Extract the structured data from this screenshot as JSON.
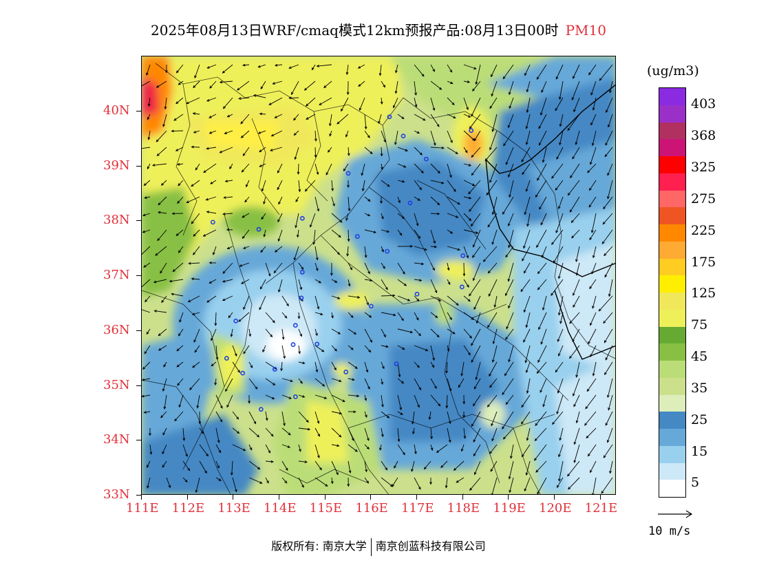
{
  "title": "2025年08月13日WRF/cmaq模式12km预报产品:08月13日00时",
  "product": "PM10",
  "lat_labels": [
    "40N",
    "39N",
    "38N",
    "37N",
    "36N",
    "35N",
    "34N",
    "33N"
  ],
  "lon_labels": [
    "111E",
    "112E",
    "113E",
    "114E",
    "115E",
    "116E",
    "117E",
    "118E",
    "119E",
    "120E",
    "121E"
  ],
  "legend": {
    "unit": "(ug/m3)",
    "labels": [
      "403",
      "368",
      "325",
      "275",
      "225",
      "175",
      "125",
      "75",
      "45",
      "35",
      "25",
      "15",
      "5"
    ],
    "colors": [
      "#8a2be2",
      "#9b30c8",
      "#b03060",
      "#cc1477",
      "#ff0000",
      "#ff2050",
      "#ff6666",
      "#ee5522",
      "#ff8800",
      "#ffaa33",
      "#ffcc22",
      "#ffee00",
      "#f0e85a",
      "#eef05a",
      "#66aa33",
      "#88c044",
      "#bbdd77",
      "#cce08c",
      "#ddeebb",
      "#4488c4",
      "#66a8d8",
      "#99d0ee",
      "#cde8f6",
      "#ffffff"
    ]
  },
  "vector_ref": "10 m/s",
  "credits": {
    "left": "版权所有: 南京大学",
    "right": "南京创蓝科技有限公司"
  },
  "stations": [
    {
      "lon": 116.4,
      "lat": 39.9
    },
    {
      "lon": 116.7,
      "lat": 39.55
    },
    {
      "lon": 117.2,
      "lat": 39.13
    },
    {
      "lon": 118.18,
      "lat": 39.65
    },
    {
      "lon": 115.5,
      "lat": 38.87
    },
    {
      "lon": 116.85,
      "lat": 38.33
    },
    {
      "lon": 114.5,
      "lat": 38.05
    },
    {
      "lon": 112.55,
      "lat": 37.98
    },
    {
      "lon": 113.55,
      "lat": 37.85
    },
    {
      "lon": 115.7,
      "lat": 37.72
    },
    {
      "lon": 116.35,
      "lat": 37.45
    },
    {
      "lon": 118.0,
      "lat": 37.37
    },
    {
      "lon": 114.5,
      "lat": 37.07
    },
    {
      "lon": 114.48,
      "lat": 36.6
    },
    {
      "lon": 117.0,
      "lat": 36.67
    },
    {
      "lon": 117.98,
      "lat": 36.8
    },
    {
      "lon": 116.0,
      "lat": 36.45
    },
    {
      "lon": 114.35,
      "lat": 36.1
    },
    {
      "lon": 113.05,
      "lat": 36.18
    },
    {
      "lon": 114.3,
      "lat": 35.75
    },
    {
      "lon": 114.82,
      "lat": 35.76
    },
    {
      "lon": 115.45,
      "lat": 35.25
    },
    {
      "lon": 116.55,
      "lat": 35.4
    },
    {
      "lon": 112.85,
      "lat": 35.5
    },
    {
      "lon": 113.2,
      "lat": 35.23
    },
    {
      "lon": 113.9,
      "lat": 35.3
    },
    {
      "lon": 113.6,
      "lat": 34.57
    },
    {
      "lon": 114.35,
      "lat": 34.8
    }
  ]
}
